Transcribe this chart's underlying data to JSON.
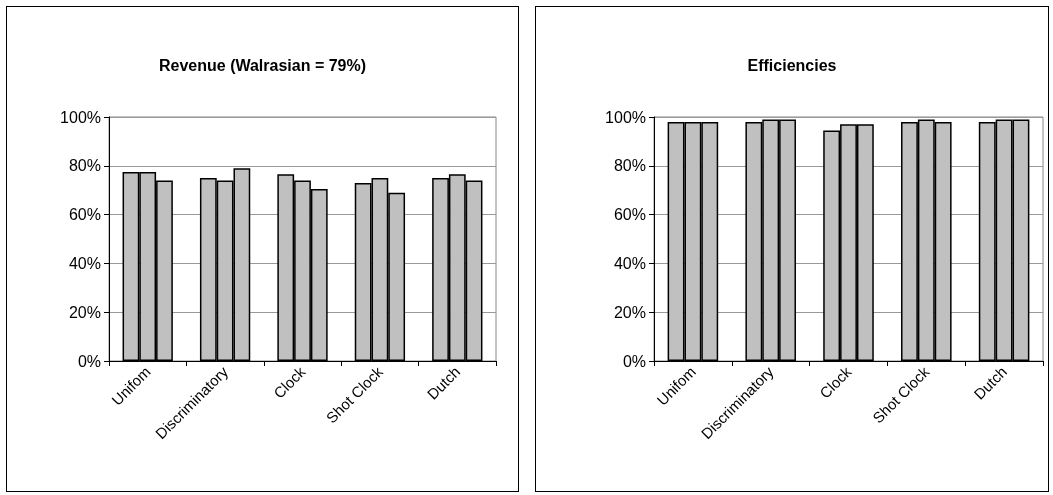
{
  "chart_data": [
    {
      "type": "bar",
      "title": "Revenue (Walrasian = 79%)",
      "categories": [
        "Unifom",
        "Discriminatory",
        "Clock",
        "Shot Clock",
        "Dutch"
      ],
      "series": [
        {
          "color": "#c0c0c0",
          "values": [
            77.5,
            75,
            76.5,
            73,
            75
          ]
        },
        {
          "color": "#c0c0c0",
          "values": [
            77.5,
            74,
            74,
            75,
            76.5
          ]
        },
        {
          "color": "#c0c0c0",
          "values": [
            74,
            79,
            70.5,
            69,
            74
          ]
        }
      ],
      "ylim": [
        0,
        100
      ],
      "yticks": [
        {
          "value": 0,
          "label": "0%"
        },
        {
          "value": 20,
          "label": "20%"
        },
        {
          "value": 40,
          "label": "40%"
        },
        {
          "value": 60,
          "label": "60%"
        },
        {
          "value": 80,
          "label": "80%"
        },
        {
          "value": 100,
          "label": "100%"
        }
      ],
      "grid": "y"
    },
    {
      "type": "bar",
      "title": "Efficiencies",
      "categories": [
        "Unifom",
        "Discriminatory",
        "Clock",
        "Shot Clock",
        "Dutch"
      ],
      "series": [
        {
          "color": "#c0c0c0",
          "values": [
            98,
            98,
            94.5,
            98,
            98
          ]
        },
        {
          "color": "#c0c0c0",
          "values": [
            98,
            99,
            97,
            99,
            99
          ]
        },
        {
          "color": "#c0c0c0",
          "values": [
            98,
            99,
            97,
            98,
            99
          ]
        }
      ],
      "ylim": [
        0,
        100
      ],
      "yticks": [
        {
          "value": 0,
          "label": "0%"
        },
        {
          "value": 20,
          "label": "20%"
        },
        {
          "value": 40,
          "label": "40%"
        },
        {
          "value": 60,
          "label": "60%"
        },
        {
          "value": 80,
          "label": "80%"
        },
        {
          "value": 100,
          "label": "100%"
        }
      ],
      "grid": "y"
    }
  ]
}
